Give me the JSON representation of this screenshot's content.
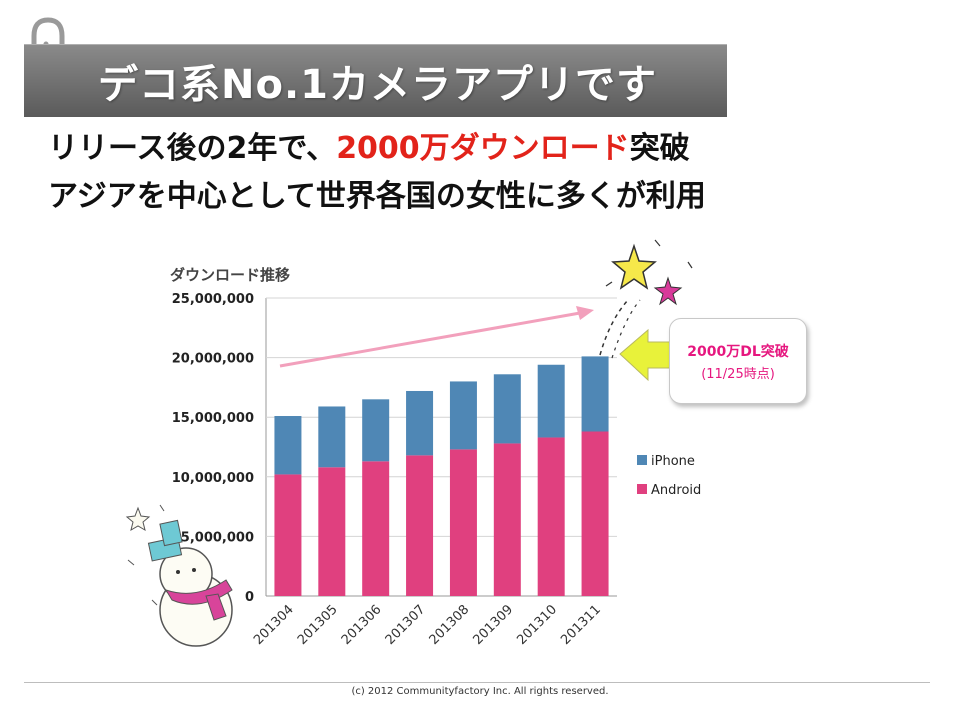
{
  "slide": {
    "title": "デコ系No.1カメラアプリです",
    "line1_prefix": "リリース後の2年で、",
    "line1_highlight": "2000万ダウンロード",
    "line1_suffix": "突破",
    "line2": "アジアを中心として世界各国の女性に多くが利用",
    "callout_main": "2000万DL突破",
    "callout_sub": "(11/25時点)",
    "footer": "(c) 2012 Communityfactory Inc. All rights reserved."
  },
  "colors": {
    "iphone": "#4f87b5",
    "android": "#e0407f",
    "highlight": "#e2231a",
    "callout": "#e6177f",
    "trend_arrow": "#f2a0bc",
    "pointer_arrow": "#e8f23a"
  },
  "chart_data": {
    "type": "bar",
    "stacked": true,
    "title": "ダウンロード推移",
    "categories": [
      "201304",
      "201305",
      "201306",
      "201307",
      "201308",
      "201309",
      "201310",
      "201311"
    ],
    "series": [
      {
        "name": "Android",
        "values": [
          10200000,
          10800000,
          11300000,
          11800000,
          12300000,
          12800000,
          13300000,
          13800000
        ]
      },
      {
        "name": "iPhone",
        "values": [
          4900000,
          5100000,
          5200000,
          5400000,
          5700000,
          5800000,
          6100000,
          6300000
        ]
      }
    ],
    "ylim": [
      0,
      25000000
    ],
    "yticks": [
      "25,000,000",
      "20,000,000",
      "15,000,000",
      "10,000,000",
      "5,000,000",
      "0"
    ],
    "ytick_values": [
      25000000,
      20000000,
      15000000,
      10000000,
      5000000,
      0
    ],
    "legend": [
      "iPhone",
      "Android"
    ],
    "legend_position": "right",
    "grid": true
  }
}
